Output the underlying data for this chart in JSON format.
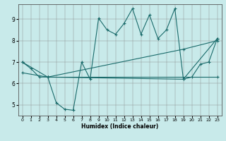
{
  "title": "",
  "xlabel": "Humidex (Indice chaleur)",
  "background_color": "#c8eaea",
  "line_color": "#1a6b6b",
  "xlim": [
    -0.5,
    23.5
  ],
  "ylim": [
    4.5,
    9.7
  ],
  "xticks": [
    0,
    1,
    2,
    3,
    4,
    5,
    6,
    7,
    8,
    9,
    10,
    11,
    12,
    13,
    14,
    15,
    16,
    17,
    18,
    19,
    20,
    21,
    22,
    23
  ],
  "yticks": [
    5,
    6,
    7,
    8,
    9
  ],
  "line1_x": [
    0,
    1,
    2,
    3,
    4,
    5,
    6,
    7,
    8,
    9,
    10,
    11,
    12,
    13,
    14,
    15,
    16,
    17,
    18,
    19,
    20,
    21,
    22,
    23
  ],
  "line1_y": [
    7.0,
    6.7,
    6.3,
    6.3,
    5.1,
    4.8,
    4.75,
    7.0,
    6.2,
    9.05,
    8.5,
    8.3,
    8.8,
    9.5,
    8.3,
    9.2,
    8.1,
    8.5,
    9.5,
    6.2,
    6.3,
    6.9,
    7.0,
    8.1
  ],
  "line2_x": [
    0,
    3,
    19,
    23
  ],
  "line2_y": [
    7.0,
    6.3,
    6.2,
    8.1
  ],
  "line3_x": [
    0,
    3,
    19,
    23
  ],
  "line3_y": [
    6.5,
    6.3,
    7.6,
    8.0
  ],
  "line4_x": [
    3,
    23
  ],
  "line4_y": [
    6.3,
    6.3
  ]
}
